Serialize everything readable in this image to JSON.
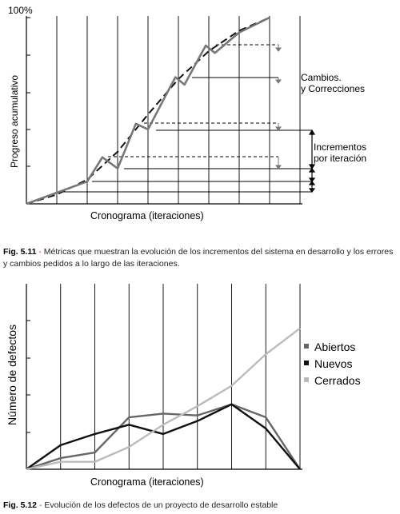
{
  "chart_data": [
    {
      "type": "line",
      "top_label": "100%",
      "ylabel": "Progreso acumulativo",
      "xlabel": "Cronograma (iteraciones)",
      "x": [
        0,
        1,
        2,
        3,
        4,
        5,
        6,
        7,
        8,
        9
      ],
      "series": [
        {
          "values": [
            0,
            9,
            16,
            34,
            60,
            71,
            90,
            98,
            100,
            100
          ]
        },
        {
          "values": [
            0,
            9,
            16,
            34,
            58,
            68,
            80,
            88,
            100,
            100
          ]
        }
      ],
      "annotations": {
        "changes": "Cambios.\ny Correcciones",
        "increments": "Incrementos\npor iteración"
      }
    },
    {
      "type": "line",
      "ylabel": "Número de defectos",
      "xlabel": "Cronograma (iteraciones)",
      "x": [
        0,
        1,
        2,
        3,
        4,
        5,
        6,
        7,
        8
      ],
      "series": [
        {
          "name": "Abiertos",
          "color": "#666666",
          "values": [
            0,
            6,
            9,
            28,
            30,
            29,
            35,
            28,
            0
          ]
        },
        {
          "name": "Nuevos",
          "color": "#111111",
          "values": [
            0,
            13,
            19,
            24,
            19,
            26,
            35,
            22,
            0
          ]
        },
        {
          "name": "Cerrados",
          "color": "#bbbbbb",
          "values": [
            0,
            4,
            4,
            12,
            24,
            34,
            45,
            62,
            76
          ]
        }
      ],
      "legend": "right"
    }
  ],
  "captions": [
    {
      "num": "Fig. 5.11",
      "text": "Métricas que muestran la evolución de los incrementos del sistema en desarrollo y los errores y cambios pedidos a lo largo de las iteraciones."
    },
    {
      "num": "Fig. 5.12",
      "text": "Evolución de los defectos de un proyecto de desarrollo estable"
    }
  ]
}
